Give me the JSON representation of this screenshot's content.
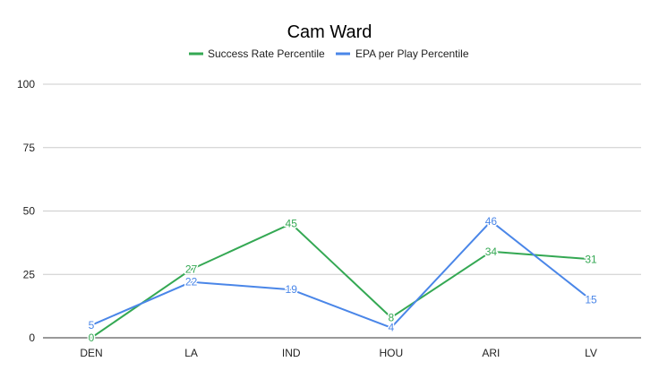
{
  "chart_data": {
    "type": "line",
    "title": "Cam Ward",
    "xlabel": "",
    "ylabel": "",
    "categories": [
      "DEN",
      "LA",
      "IND",
      "HOU",
      "ARI",
      "LV"
    ],
    "series": [
      {
        "name": "Success Rate Percentile",
        "color": "#34a853",
        "values": [
          0,
          27,
          45,
          8,
          34,
          31
        ]
      },
      {
        "name": "EPA per Play Percentile",
        "color": "#4a86e8",
        "values": [
          5,
          22,
          19,
          4,
          46,
          15
        ]
      }
    ],
    "ylim": [
      0,
      100
    ],
    "yticks": [
      0,
      25,
      50,
      75,
      100
    ],
    "grid": true,
    "legend_position": "top"
  }
}
